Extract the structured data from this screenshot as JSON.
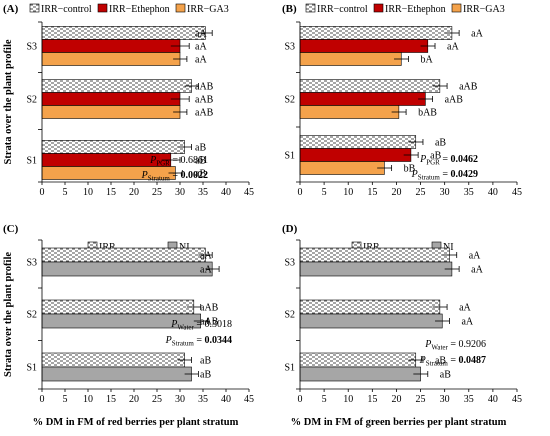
{
  "chart_data": [
    {
      "type": "bar",
      "orientation": "horizontal",
      "panel": "(A)",
      "legend": "top",
      "xlim": [
        0,
        45
      ],
      "xticks": [
        0,
        5,
        10,
        15,
        20,
        25,
        30,
        35,
        40,
        45
      ],
      "categories": [
        "S1",
        "S2",
        "S3"
      ],
      "ylabel": "Strata over the plant profile",
      "xlabel": "",
      "grid": false,
      "series": [
        {
          "name": "IRR−control",
          "color": "#ffffff",
          "hatch": true,
          "values": [
            31,
            32.5,
            35.5
          ],
          "errors": [
            1.5,
            1.5,
            1.5
          ],
          "labels": [
            "aB",
            "aAB",
            "aA"
          ]
        },
        {
          "name": "IRR−Ethephon",
          "color": "#c00000",
          "values": [
            28,
            30,
            30
          ],
          "errors": [
            2,
            2,
            2
          ],
          "labels": [
            "aB",
            "aAB",
            "aA"
          ]
        },
        {
          "name": "IRR−GA3",
          "color": "#f4a24b",
          "values": [
            29,
            30,
            30
          ],
          "errors": [
            1.5,
            1.5,
            1.5
          ],
          "labels": [
            "aB",
            "aAB",
            "aA"
          ]
        }
      ],
      "stats": [
        {
          "prefix": "P",
          "sub": "PGR",
          "value": " = 0.6861",
          "bold": false
        },
        {
          "prefix": "P",
          "sub": "Stratum",
          "value": " = ",
          "bold_value": "0.0022"
        }
      ]
    },
    {
      "type": "bar",
      "orientation": "horizontal",
      "panel": "(B)",
      "legend": "top",
      "xlim": [
        0,
        45
      ],
      "xticks": [
        0,
        5,
        10,
        15,
        20,
        25,
        30,
        35,
        40,
        45
      ],
      "categories": [
        "S1",
        "S2",
        "S3"
      ],
      "ylabel": "",
      "xlabel": "",
      "grid": false,
      "series": [
        {
          "name": "IRR−control",
          "color": "#ffffff",
          "hatch": true,
          "values": [
            24,
            29,
            31.5
          ],
          "errors": [
            1.5,
            1.5,
            1.5
          ],
          "labels": [
            "aB",
            "aAB",
            "aA"
          ]
        },
        {
          "name": "IRR−Ethephon",
          "color": "#c00000",
          "values": [
            23,
            26,
            26.5
          ],
          "errors": [
            1.5,
            1.5,
            1.5
          ],
          "labels": [
            "aB",
            "aAB",
            "aA"
          ]
        },
        {
          "name": "IRR−GA3",
          "color": "#f4a24b",
          "values": [
            17.5,
            20.5,
            21
          ],
          "errors": [
            1.5,
            1.5,
            1.5
          ],
          "labels": [
            "bB",
            "bAB",
            "bA"
          ]
        }
      ],
      "stats": [
        {
          "prefix": "P",
          "sub": "PGR",
          "value": " = ",
          "bold_value": "0.0462"
        },
        {
          "prefix": "P",
          "sub": "Stratum",
          "value": " = ",
          "bold_value": "0.0429"
        }
      ]
    },
    {
      "type": "bar",
      "orientation": "horizontal",
      "panel": "(C)",
      "legend": "top",
      "xlim": [
        0,
        45
      ],
      "xticks": [
        0,
        5,
        10,
        15,
        20,
        25,
        30,
        35,
        40,
        45
      ],
      "categories": [
        "S1",
        "S2",
        "S3"
      ],
      "ylabel": "Strata over the plant profile",
      "xlabel": "% DM in FM of red berries per plant stratum",
      "grid": false,
      "series": [
        {
          "name": "IRR",
          "color": "#ffffff",
          "hatch": true,
          "values": [
            31,
            33,
            35.5
          ],
          "errors": [
            1.5,
            1.5,
            1.5
          ],
          "labels": [
            "aB",
            "aAB",
            "aA"
          ]
        },
        {
          "name": "NI",
          "color": "#a6a6a6",
          "values": [
            32.5,
            34.5,
            37
          ],
          "errors": [
            1.5,
            1.5,
            1.5
          ],
          "labels": [
            "aB",
            "aAB",
            "aA"
          ]
        }
      ],
      "stats": [
        {
          "prefix": "P",
          "sub": "Water",
          "value": " = 0.3018",
          "bold": false
        },
        {
          "prefix": "P",
          "sub": "Stratum",
          "value": " = ",
          "bold_value": "0.0344"
        }
      ]
    },
    {
      "type": "bar",
      "orientation": "horizontal",
      "panel": "(D)",
      "legend": "top",
      "xlim": [
        0,
        45
      ],
      "xticks": [
        0,
        5,
        10,
        15,
        20,
        25,
        30,
        35,
        40,
        45
      ],
      "categories": [
        "S1",
        "S2",
        "S3"
      ],
      "ylabel": "",
      "xlabel": "% DM in FM of green berries per plant stratum",
      "grid": false,
      "series": [
        {
          "name": "IRR",
          "color": "#ffffff",
          "hatch": true,
          "values": [
            24,
            29,
            31
          ],
          "errors": [
            1.5,
            1.5,
            1.5
          ],
          "labels": [
            "aB",
            "aA",
            "aA"
          ]
        },
        {
          "name": "NI",
          "color": "#a6a6a6",
          "values": [
            25,
            29.5,
            31.5
          ],
          "errors": [
            1.5,
            1.5,
            1.5
          ],
          "labels": [
            "aB",
            "aA",
            "aA"
          ]
        }
      ],
      "stats": [
        {
          "prefix": "P",
          "sub": "Water",
          "value": " = 0.9206",
          "bold": false
        },
        {
          "prefix": "P",
          "sub": "Stratum",
          "value": " = ",
          "bold_value": "0.0487"
        }
      ]
    }
  ]
}
